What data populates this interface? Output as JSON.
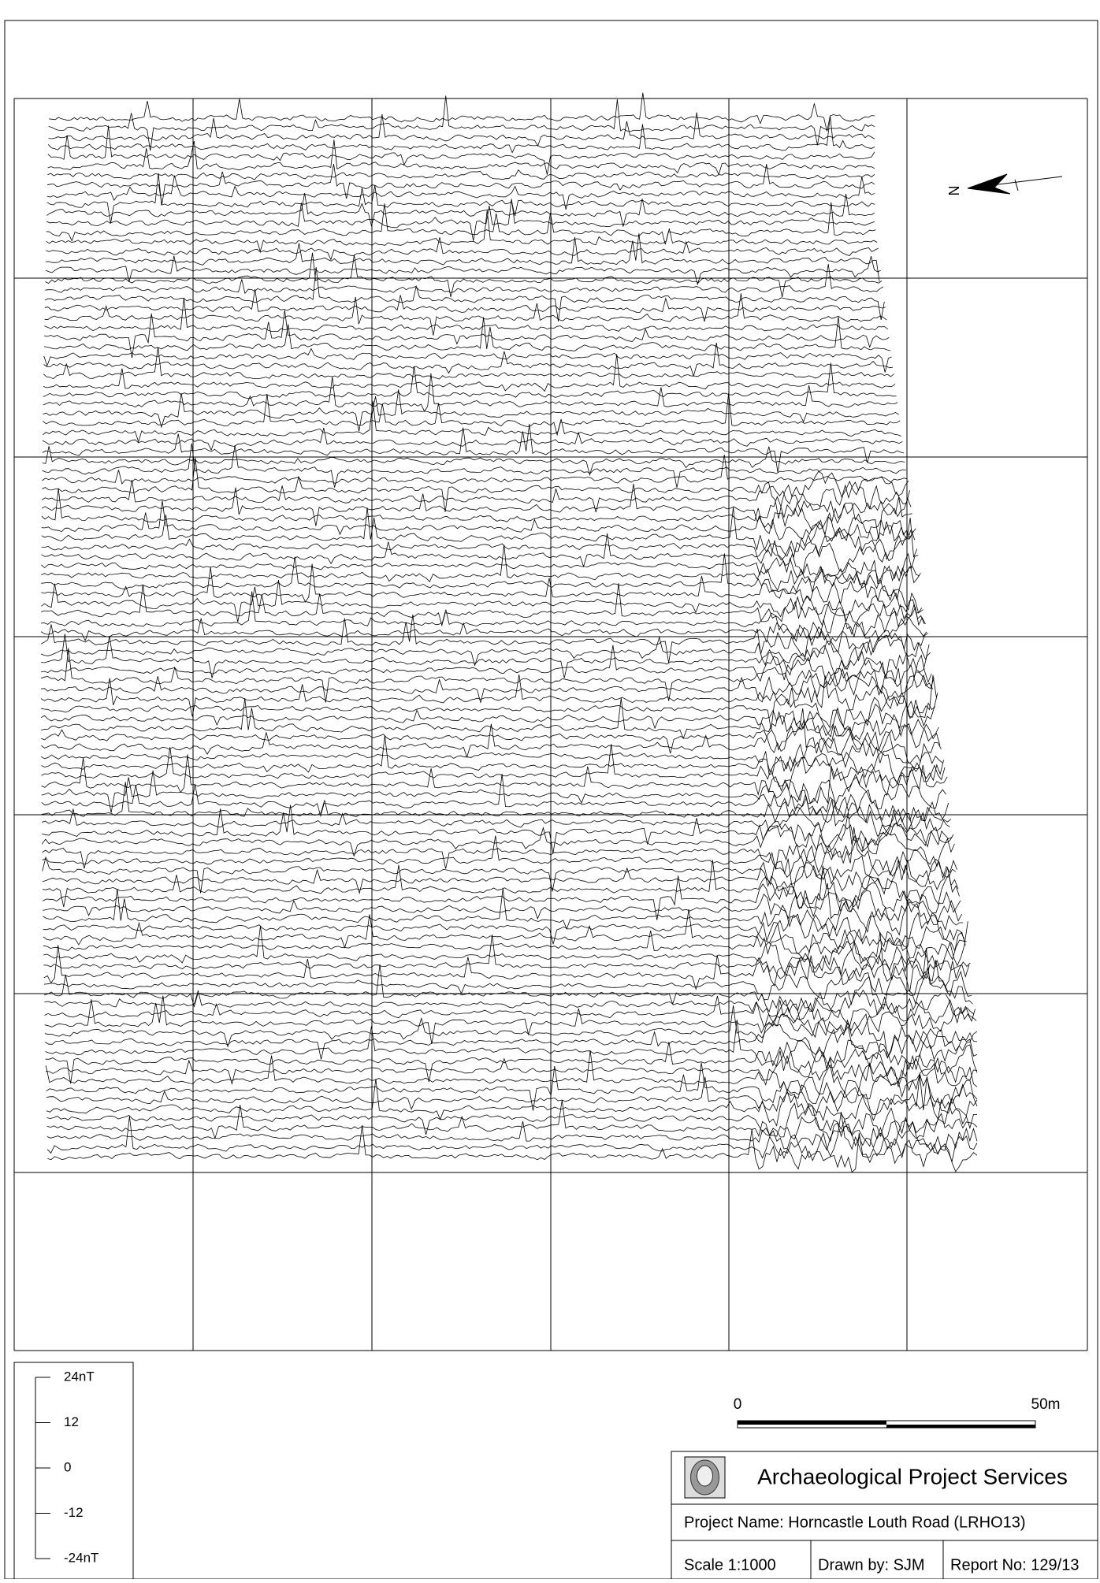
{
  "legend": {
    "ticks": [
      "24nT",
      "12",
      "0",
      "-12",
      "-24nT"
    ]
  },
  "scale_bar": {
    "start": "0",
    "end": "50m"
  },
  "north_arrow": "N",
  "title_block": {
    "organisation": "Archaeological Project Services",
    "project": "Project Name: Horncastle Louth Road (LRHO13)",
    "scale": "Scale 1:1000",
    "drawn_by": "Drawn by: SJM",
    "report_no": "Report No: 129/13"
  }
}
